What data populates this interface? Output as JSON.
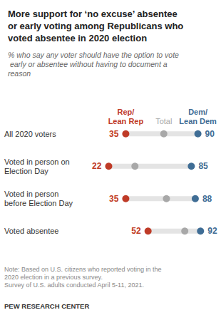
{
  "chart_data": {
    "type": "dot",
    "title": "More support for ‘no excuse’ absentee or early voting among Republicans who voted absentee in 2020 election",
    "subtitle": "% who say any voter should have the option to vote early or absentee without having to document a reason",
    "categories": [
      "All 2020 voters",
      "Voted in person on Election Day",
      "Voted in person before Election Day",
      "Voted absentee"
    ],
    "series": [
      {
        "name": "Rep/ Lean Rep",
        "color": "#bf3b27",
        "values": [
          35,
          22,
          35,
          52
        ],
        "data_labels": true
      },
      {
        "name": "Total",
        "color": "#a8a8a8",
        "values": [
          64,
          42,
          66,
          80
        ],
        "data_labels": false
      },
      {
        "name": "Dem/ Lean Dem",
        "color": "#3f6d95",
        "values": [
          90,
          85,
          88,
          92
        ],
        "data_labels": true
      }
    ],
    "xlim": [
      0,
      100
    ],
    "tick_labels": "y",
    "grid": false,
    "notes": [
      "Note: Based on U.S. citizens who reported voting in the 2020 election in a previous survey.",
      "Survey of U.S. adults conducted April 5-11, 2021."
    ],
    "source": "PEW RESEARCH CENTER"
  }
}
